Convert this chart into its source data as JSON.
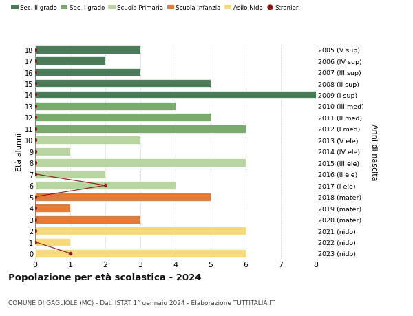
{
  "ages": [
    18,
    17,
    16,
    15,
    14,
    13,
    12,
    11,
    10,
    9,
    8,
    7,
    6,
    5,
    4,
    3,
    2,
    1,
    0
  ],
  "right_labels": [
    "2005 (V sup)",
    "2006 (IV sup)",
    "2007 (III sup)",
    "2008 (II sup)",
    "2009 (I sup)",
    "2010 (III med)",
    "2011 (II med)",
    "2012 (I med)",
    "2013 (V ele)",
    "2014 (IV ele)",
    "2015 (III ele)",
    "2016 (II ele)",
    "2017 (I ele)",
    "2018 (mater)",
    "2019 (mater)",
    "2020 (mater)",
    "2021 (nido)",
    "2022 (nido)",
    "2023 (nido)"
  ],
  "bar_values": [
    3,
    2,
    3,
    5,
    8,
    4,
    5,
    6,
    3,
    1,
    6,
    2,
    4,
    5,
    1,
    3,
    6,
    1,
    6
  ],
  "bar_colors": [
    "#4a7c59",
    "#4a7c59",
    "#4a7c59",
    "#4a7c59",
    "#4a7c59",
    "#7aab6e",
    "#7aab6e",
    "#7aab6e",
    "#b8d4a0",
    "#b8d4a0",
    "#b8d4a0",
    "#b8d4a0",
    "#b8d4a0",
    "#e07b39",
    "#e07b39",
    "#e07b39",
    "#f5d97a",
    "#f5d97a",
    "#f5d97a"
  ],
  "stranieri_x": [
    0,
    0,
    0,
    0,
    0,
    0,
    0,
    0,
    0,
    0,
    0,
    0,
    2,
    0,
    0,
    0,
    0,
    0,
    1
  ],
  "colors": {
    "sec2": "#4a7c59",
    "sec1": "#7aab6e",
    "primaria": "#b8d4a0",
    "infanzia": "#e07b39",
    "nido": "#f5d97a",
    "stranieri": "#8b1a1a"
  },
  "legend_labels": [
    "Sec. II grado",
    "Sec. I grado",
    "Scuola Primaria",
    "Scuola Infanzia",
    "Asilo Nido",
    "Stranieri"
  ],
  "title": "Popolazione per età scolastica - 2024",
  "subtitle": "COMUNE DI GAGLIOLE (MC) - Dati ISTAT 1° gennaio 2024 - Elaborazione TUTTITALIA.IT",
  "ylabel_left": "Età alunni",
  "ylabel_right": "Anni di nascita",
  "background_color": "#ffffff",
  "grid_color": "#cccccc"
}
